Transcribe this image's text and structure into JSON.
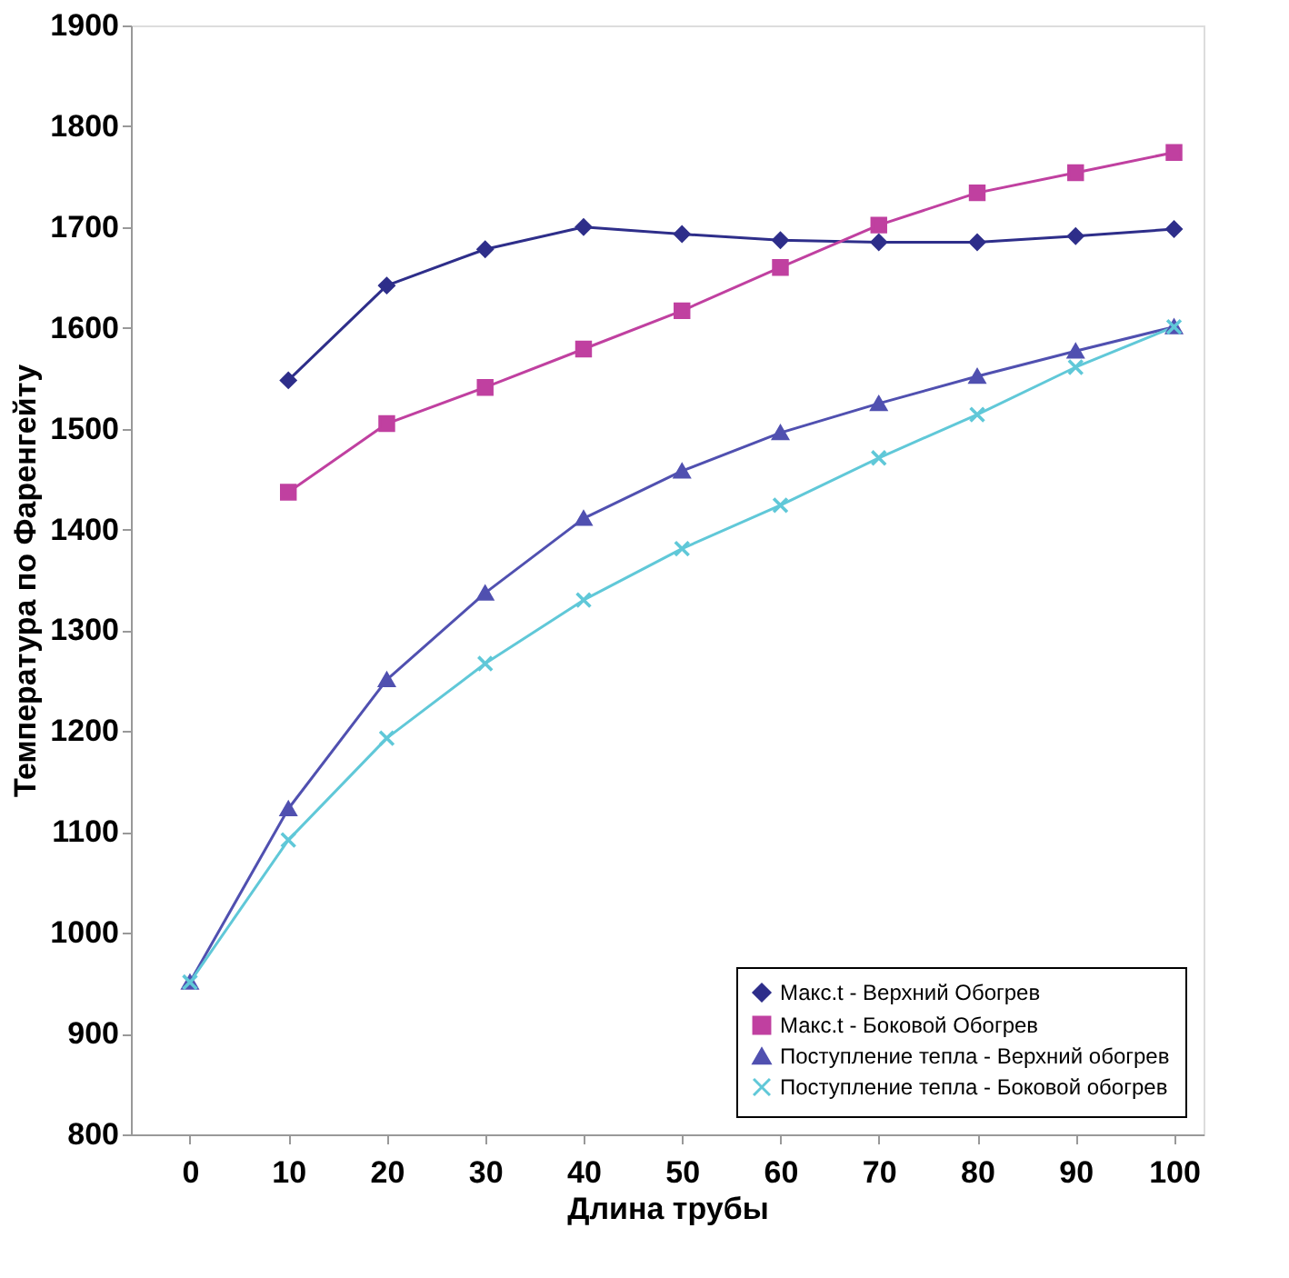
{
  "chart_data": {
    "type": "line",
    "xlabel": "Длина трубы",
    "ylabel": "Температура по Фаренгейту",
    "x": [
      0,
      10,
      20,
      30,
      40,
      50,
      60,
      70,
      80,
      90,
      100
    ],
    "series": [
      {
        "name": "Макс.t - Верхний Обогрев",
        "color": "#2e2e8a",
        "marker": "diamond",
        "values": [
          null,
          1548,
          1642,
          1678,
          1700,
          1693,
          1687,
          1685,
          1685,
          1691,
          1698
        ]
      },
      {
        "name": "Макс.t - Боковой Обогрев",
        "color": "#c040a0",
        "marker": "square",
        "values": [
          null,
          1437,
          1505,
          1541,
          1579,
          1617,
          1660,
          1702,
          1734,
          1754,
          1774
        ]
      },
      {
        "name": "Поступление тепла - Верхний обогрев",
        "color": "#5050b0",
        "marker": "triangle",
        "values": [
          951,
          1123,
          1251,
          1337,
          1411,
          1458,
          1496,
          1525,
          1552,
          1577,
          1601
        ]
      },
      {
        "name": "Поступление тепла - Боковой обогрев",
        "color": "#60c8d8",
        "marker": "cross",
        "values": [
          951,
          1092,
          1193,
          1267,
          1330,
          1381,
          1424,
          1471,
          1514,
          1561,
          1601
        ]
      }
    ],
    "xlim": [
      -6,
      103
    ],
    "xticks": [
      0,
      10,
      20,
      30,
      40,
      50,
      60,
      70,
      80,
      90,
      100
    ],
    "ylim": [
      800,
      1900
    ],
    "yticks": [
      800,
      900,
      1000,
      1100,
      1200,
      1300,
      1400,
      1500,
      1600,
      1700,
      1800,
      1900
    ],
    "grid": false,
    "legend": "bottom right",
    "line_style": "solid"
  }
}
